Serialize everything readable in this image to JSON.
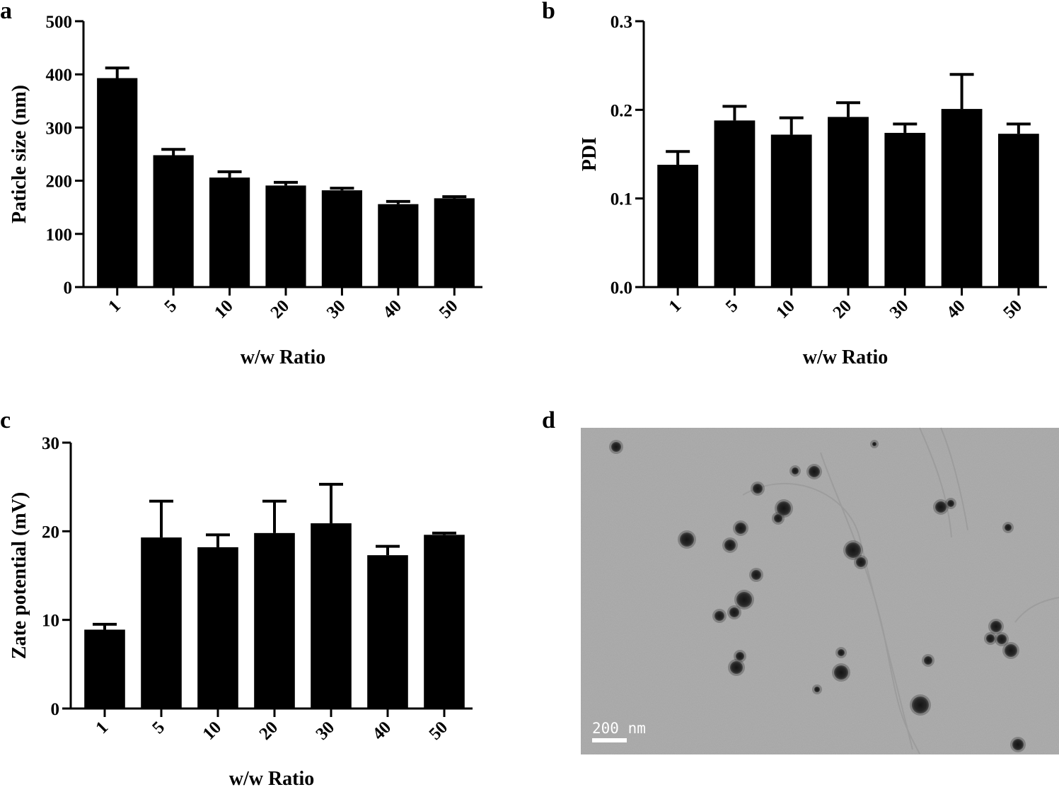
{
  "panels": [
    {
      "letter": "a"
    },
    {
      "letter": "b"
    },
    {
      "letter": "c"
    },
    {
      "letter": "d"
    }
  ],
  "chart_data": [
    {
      "type": "bar",
      "panel": "a",
      "categories": [
        "1",
        "5",
        "10",
        "20",
        "30",
        "40",
        "50"
      ],
      "values": [
        393,
        248,
        206,
        191,
        182,
        156,
        167
      ],
      "errors": [
        19,
        11,
        11,
        6,
        4,
        5,
        3
      ],
      "ylabel": "Paticle size (nm)",
      "xlabel": "w/w Ratio",
      "ylim": [
        0,
        500
      ],
      "yticks": [
        "0",
        "100",
        "200",
        "300",
        "400",
        "500"
      ],
      "grid": false
    },
    {
      "type": "bar",
      "panel": "b",
      "categories": [
        "1",
        "5",
        "10",
        "20",
        "30",
        "40",
        "50"
      ],
      "values": [
        0.138,
        0.188,
        0.172,
        0.192,
        0.174,
        0.201,
        0.173
      ],
      "errors": [
        0.015,
        0.016,
        0.019,
        0.016,
        0.01,
        0.039,
        0.011
      ],
      "ylabel": "PDI",
      "xlabel": "w/w Ratio",
      "ylim": [
        0,
        0.3
      ],
      "yticks": [
        "0.0",
        "0.1",
        "0.2",
        "0.3"
      ],
      "grid": false
    },
    {
      "type": "bar",
      "panel": "c",
      "categories": [
        "1",
        "5",
        "10",
        "20",
        "30",
        "40",
        "50"
      ],
      "values": [
        8.9,
        19.3,
        18.2,
        19.8,
        20.9,
        17.3,
        19.6
      ],
      "errors": [
        0.6,
        4.1,
        1.4,
        3.6,
        4.4,
        1.0,
        0.2
      ],
      "ylabel": "Zate potential (mV)",
      "xlabel": "w/w Ratio",
      "ylim": [
        0,
        30
      ],
      "yticks": [
        "0",
        "10",
        "20",
        "30"
      ],
      "grid": false
    }
  ],
  "micrograph": {
    "scale_label": "200 nm",
    "background": "#a7a7a7",
    "particle_color": "#1d1d1d"
  }
}
